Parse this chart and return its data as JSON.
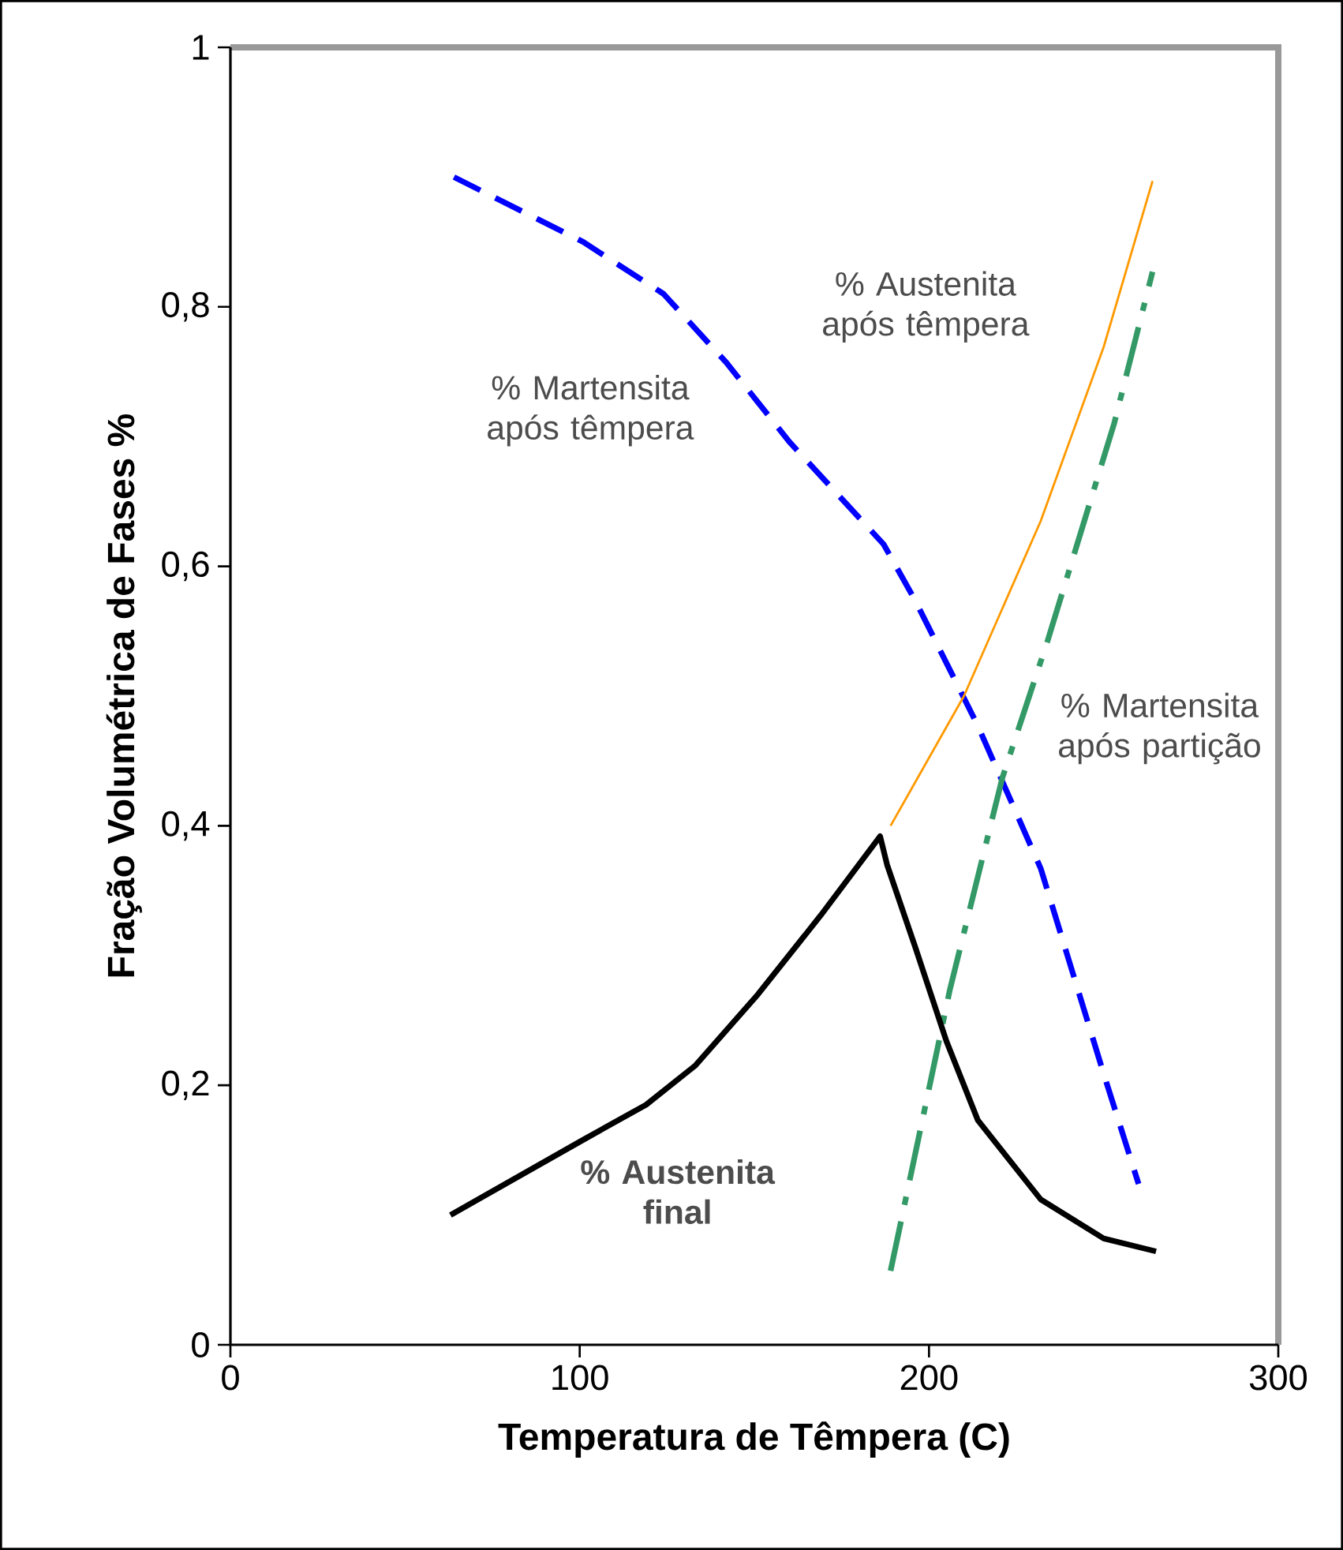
{
  "chart_data": {
    "type": "line",
    "xlabel": "Temperatura de Têmpera (C)",
    "ylabel": "Fração Volumétrica de Fases %",
    "xlim": [
      0,
      300
    ],
    "xticks": [
      0,
      100,
      200,
      300
    ],
    "ylim": [
      0,
      1
    ],
    "yticks": [
      {
        "value": 0,
        "label": "0"
      },
      {
        "value": 0.2,
        "label": "0,2"
      },
      {
        "value": 0.4,
        "label": "0,4"
      },
      {
        "value": 0.6,
        "label": "0,6"
      },
      {
        "value": 0.8,
        "label": "0,8"
      },
      {
        "value": 1,
        "label": "1"
      }
    ],
    "grid": false,
    "legend": false,
    "series": [
      {
        "name": "% Martensita após têmpera",
        "color": "#0000ff",
        "line_style": "dashed",
        "x": [
          64,
          101,
          124,
          142,
          160,
          187,
          196,
          214,
          232,
          250,
          260
        ],
        "values": [
          0.9,
          0.85,
          0.81,
          0.757,
          0.696,
          0.617,
          0.574,
          0.477,
          0.367,
          0.209,
          0.124
        ]
      },
      {
        "name": "% Austenita após têmpera",
        "color": "#ff9900",
        "line_style": "solid",
        "x": [
          189,
          210,
          232,
          250,
          264
        ],
        "values": [
          0.4,
          0.5,
          0.635,
          0.769,
          0.897
        ]
      },
      {
        "name": "% Martensita após partição",
        "color": "#339966",
        "line_style": "dashdot",
        "x": [
          189,
          206,
          221,
          234,
          253,
          264
        ],
        "values": [
          0.057,
          0.274,
          0.437,
          0.543,
          0.71,
          0.827
        ]
      },
      {
        "name": "% Austenita final",
        "color": "#000000",
        "line_style": "solid",
        "x": [
          63,
          101,
          119,
          133,
          151,
          169,
          186,
          188,
          196,
          205,
          214,
          232,
          250,
          265
        ],
        "values": [
          0.1,
          0.158,
          0.185,
          0.215,
          0.27,
          0.331,
          0.392,
          0.37,
          0.307,
          0.234,
          0.173,
          0.112,
          0.082,
          0.072
        ]
      }
    ]
  }
}
